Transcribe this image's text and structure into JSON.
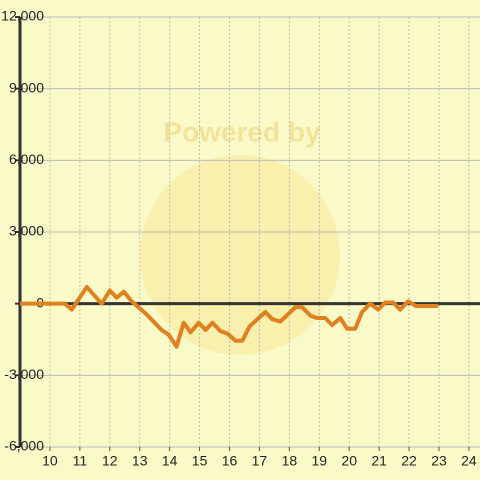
{
  "chart_data": {
    "type": "line",
    "watermark": "Powered by",
    "x": [
      9,
      10.5,
      10.73,
      11.23,
      11.73,
      12.0,
      12.23,
      12.47,
      12.73,
      13.23,
      13.73,
      13.97,
      14.23,
      14.47,
      14.7,
      14.97,
      15.2,
      15.43,
      15.7,
      15.93,
      16.2,
      16.43,
      16.67,
      17.2,
      17.43,
      17.7,
      18.2,
      18.43,
      18.7,
      18.93,
      19.2,
      19.43,
      19.7,
      19.93,
      20.2,
      20.43,
      20.7,
      20.97,
      21.2,
      21.47,
      21.7,
      21.97,
      22.23,
      22.97
    ],
    "series": [
      {
        "color": "#e0801f",
        "values": [
          0,
          0,
          -250,
          700,
          0,
          550,
          250,
          500,
          100,
          -450,
          -1100,
          -1300,
          -1800,
          -800,
          -1200,
          -800,
          -1100,
          -800,
          -1150,
          -1250,
          -1550,
          -1550,
          -950,
          -350,
          -650,
          -750,
          -150,
          -150,
          -500,
          -600,
          -600,
          -900,
          -600,
          -1050,
          -1050,
          -350,
          0,
          -250,
          50,
          50,
          -250,
          100,
          -100,
          -100
        ]
      }
    ],
    "xlim": [
      9,
      24.37
    ],
    "ylim": [
      -6000,
      12000
    ],
    "xticks": [
      10,
      11,
      12,
      13,
      14,
      15,
      16,
      17,
      18,
      19,
      20,
      21,
      22,
      23,
      24
    ],
    "yticks": [
      {
        "value": -6000,
        "label": "-6,000"
      },
      {
        "value": -3000,
        "label": "-3,000"
      },
      0,
      {
        "value": 3000,
        "label": "3,000"
      },
      {
        "value": 6000,
        "label": "6,000"
      },
      {
        "value": 9000,
        "label": "9,000"
      },
      {
        "value": 12000,
        "label": "12,000"
      }
    ],
    "grid": true
  }
}
